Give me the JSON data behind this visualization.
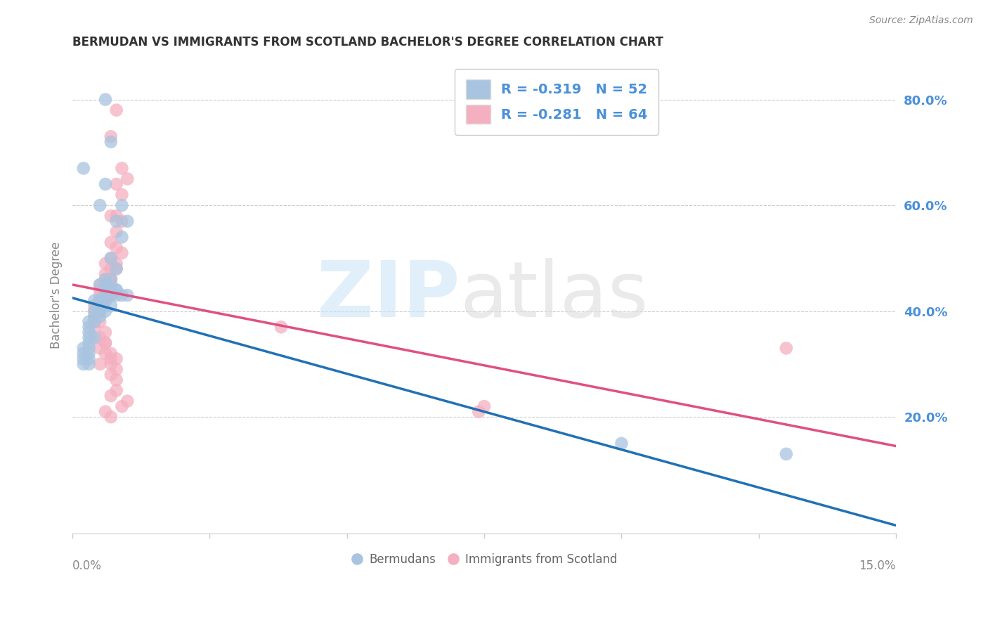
{
  "title": "BERMUDAN VS IMMIGRANTS FROM SCOTLAND BACHELOR'S DEGREE CORRELATION CHART",
  "source": "Source: ZipAtlas.com",
  "ylabel": "Bachelor's Degree",
  "right_yticks": [
    "20.0%",
    "40.0%",
    "60.0%",
    "80.0%"
  ],
  "right_ytick_vals": [
    0.2,
    0.4,
    0.6,
    0.8
  ],
  "xlim": [
    0.0,
    0.15
  ],
  "ylim": [
    -0.02,
    0.88
  ],
  "blue_color": "#a8c4e0",
  "pink_color": "#f4afc0",
  "blue_line_color": "#2171b5",
  "pink_line_color": "#e05080",
  "text_color": "#4a90d9",
  "blue_R": -0.319,
  "blue_N": 52,
  "pink_R": -0.281,
  "pink_N": 64,
  "blue_scatter_x": [
    0.006,
    0.007,
    0.006,
    0.005,
    0.009,
    0.01,
    0.008,
    0.009,
    0.007,
    0.008,
    0.006,
    0.007,
    0.005,
    0.006,
    0.008,
    0.006,
    0.007,
    0.008,
    0.006,
    0.007,
    0.005,
    0.004,
    0.005,
    0.006,
    0.007,
    0.005,
    0.006,
    0.004,
    0.005,
    0.004,
    0.005,
    0.003,
    0.004,
    0.003,
    0.003,
    0.004,
    0.003,
    0.003,
    0.003,
    0.002,
    0.003,
    0.002,
    0.003,
    0.002,
    0.002,
    0.003,
    0.009,
    0.01,
    0.008,
    0.13,
    0.1,
    0.002
  ],
  "blue_scatter_y": [
    0.8,
    0.72,
    0.64,
    0.6,
    0.6,
    0.57,
    0.57,
    0.54,
    0.5,
    0.48,
    0.46,
    0.46,
    0.45,
    0.45,
    0.44,
    0.44,
    0.44,
    0.43,
    0.43,
    0.43,
    0.42,
    0.42,
    0.42,
    0.42,
    0.41,
    0.41,
    0.4,
    0.4,
    0.4,
    0.39,
    0.39,
    0.38,
    0.38,
    0.37,
    0.36,
    0.35,
    0.35,
    0.34,
    0.33,
    0.33,
    0.32,
    0.32,
    0.31,
    0.31,
    0.3,
    0.3,
    0.43,
    0.43,
    0.44,
    0.13,
    0.15,
    0.67
  ],
  "pink_scatter_x": [
    0.008,
    0.007,
    0.009,
    0.01,
    0.008,
    0.009,
    0.008,
    0.007,
    0.009,
    0.008,
    0.007,
    0.008,
    0.009,
    0.007,
    0.008,
    0.006,
    0.007,
    0.008,
    0.007,
    0.006,
    0.007,
    0.006,
    0.007,
    0.006,
    0.005,
    0.006,
    0.005,
    0.007,
    0.006,
    0.005,
    0.006,
    0.005,
    0.004,
    0.005,
    0.004,
    0.005,
    0.004,
    0.004,
    0.005,
    0.004,
    0.006,
    0.005,
    0.006,
    0.006,
    0.005,
    0.006,
    0.007,
    0.007,
    0.008,
    0.005,
    0.007,
    0.008,
    0.007,
    0.008,
    0.008,
    0.007,
    0.01,
    0.009,
    0.006,
    0.007,
    0.038,
    0.075,
    0.074,
    0.13
  ],
  "pink_scatter_y": [
    0.78,
    0.73,
    0.67,
    0.65,
    0.64,
    0.62,
    0.58,
    0.58,
    0.57,
    0.55,
    0.53,
    0.52,
    0.51,
    0.5,
    0.49,
    0.49,
    0.48,
    0.48,
    0.46,
    0.47,
    0.46,
    0.46,
    0.45,
    0.45,
    0.45,
    0.44,
    0.44,
    0.43,
    0.43,
    0.43,
    0.42,
    0.42,
    0.41,
    0.41,
    0.4,
    0.4,
    0.39,
    0.38,
    0.38,
    0.37,
    0.36,
    0.35,
    0.34,
    0.34,
    0.33,
    0.32,
    0.32,
    0.31,
    0.31,
    0.3,
    0.3,
    0.29,
    0.28,
    0.27,
    0.25,
    0.24,
    0.23,
    0.22,
    0.21,
    0.2,
    0.37,
    0.22,
    0.21,
    0.33
  ],
  "blue_trend_x": [
    0.0,
    0.15
  ],
  "blue_trend_y": [
    0.425,
    -0.005
  ],
  "pink_trend_x": [
    0.0,
    0.15
  ],
  "pink_trend_y": [
    0.45,
    0.145
  ]
}
